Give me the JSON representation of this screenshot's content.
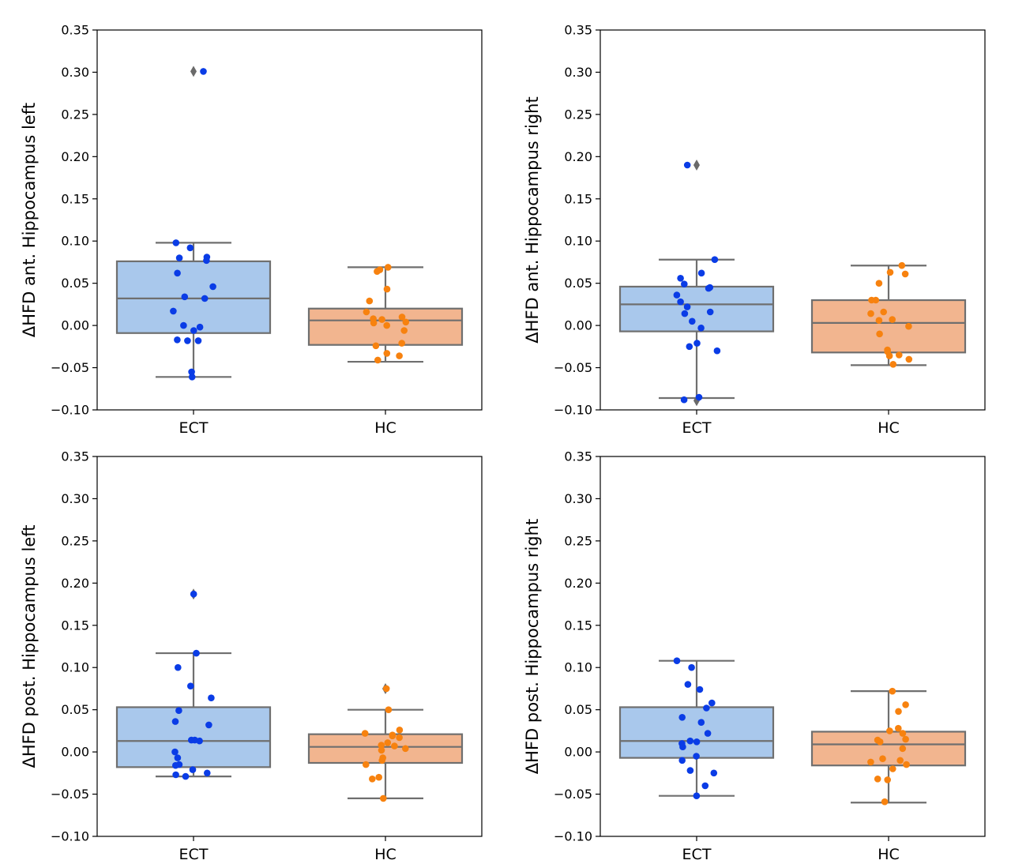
{
  "colors": {
    "ect_box": "#a9c8ec",
    "hc_box": "#f2b58f",
    "ect_point": "#0a3ce6",
    "hc_point": "#f7820f",
    "box_line": "#6f6f6f",
    "outlier_marker": "#6a6a6a",
    "axes": "#000000"
  },
  "chart_data": [
    {
      "type": "box",
      "ylabel": "ΔHFD ant. Hippocampus left",
      "categories": [
        "ECT",
        "HC"
      ],
      "ylim": [
        -0.1,
        0.35
      ],
      "yticks": [
        -0.1,
        -0.05,
        0.0,
        0.05,
        0.1,
        0.15,
        0.2,
        0.25,
        0.3,
        0.35
      ],
      "ytick_labels": [
        "−0.10",
        "−0.05",
        "0.00",
        "0.05",
        "0.10",
        "0.15",
        "0.20",
        "0.25",
        "0.30",
        "0.35"
      ],
      "boxes": [
        {
          "category": "ECT",
          "whisker_low": -0.061,
          "q1": -0.009,
          "median": 0.032,
          "q3": 0.076,
          "whisker_high": 0.098,
          "outliers": [
            0.301
          ]
        },
        {
          "category": "HC",
          "whisker_low": -0.043,
          "q1": -0.023,
          "median": 0.006,
          "q3": 0.02,
          "whisker_high": 0.069,
          "outliers": []
        }
      ],
      "points": [
        {
          "category": "ECT",
          "values": [
            0.301,
            0.098,
            0.092,
            0.081,
            0.08,
            0.077,
            0.062,
            0.046,
            0.034,
            0.032,
            0.017,
            0.0,
            -0.002,
            -0.006,
            -0.017,
            -0.018,
            -0.018,
            -0.055,
            -0.061
          ]
        },
        {
          "category": "HC",
          "values": [
            0.069,
            0.066,
            0.064,
            0.043,
            0.029,
            0.016,
            0.01,
            0.008,
            0.007,
            0.004,
            0.003,
            0.0,
            -0.006,
            -0.021,
            -0.024,
            -0.033,
            -0.036,
            -0.041
          ]
        }
      ]
    },
    {
      "type": "box",
      "ylabel": "ΔHFD ant. Hippocampus right",
      "categories": [
        "ECT",
        "HC"
      ],
      "ylim": [
        -0.1,
        0.35
      ],
      "yticks": [
        -0.1,
        -0.05,
        0.0,
        0.05,
        0.1,
        0.15,
        0.2,
        0.25,
        0.3,
        0.35
      ],
      "ytick_labels": [
        "−0.10",
        "−0.05",
        "0.00",
        "0.05",
        "0.10",
        "0.15",
        "0.20",
        "0.25",
        "0.30",
        "0.35"
      ],
      "boxes": [
        {
          "category": "ECT",
          "whisker_low": -0.086,
          "q1": -0.007,
          "median": 0.025,
          "q3": 0.046,
          "whisker_high": 0.078,
          "outliers": [
            0.19,
            -0.089
          ]
        },
        {
          "category": "HC",
          "whisker_low": -0.047,
          "q1": -0.032,
          "median": 0.003,
          "q3": 0.03,
          "whisker_high": 0.071,
          "outliers": []
        }
      ],
      "points": [
        {
          "category": "ECT",
          "values": [
            0.19,
            0.078,
            0.062,
            0.056,
            0.049,
            0.045,
            0.044,
            0.036,
            0.028,
            0.022,
            0.016,
            0.014,
            0.005,
            -0.003,
            -0.021,
            -0.025,
            -0.03,
            -0.085,
            -0.088
          ]
        },
        {
          "category": "HC",
          "values": [
            0.071,
            0.063,
            0.061,
            0.05,
            0.03,
            0.03,
            0.016,
            0.014,
            0.007,
            0.006,
            -0.001,
            -0.01,
            -0.029,
            -0.031,
            -0.035,
            -0.036,
            -0.04,
            -0.046
          ]
        }
      ]
    },
    {
      "type": "box",
      "ylabel": "ΔHFD post. Hippocampus left",
      "categories": [
        "ECT",
        "HC"
      ],
      "ylim": [
        -0.1,
        0.35
      ],
      "yticks": [
        -0.1,
        -0.05,
        0.0,
        0.05,
        0.1,
        0.15,
        0.2,
        0.25,
        0.3,
        0.35
      ],
      "ytick_labels": [
        "−0.10",
        "−0.05",
        "0.00",
        "0.05",
        "0.10",
        "0.15",
        "0.20",
        "0.25",
        "0.30",
        "0.35"
      ],
      "boxes": [
        {
          "category": "ECT",
          "whisker_low": -0.029,
          "q1": -0.018,
          "median": 0.013,
          "q3": 0.053,
          "whisker_high": 0.117,
          "outliers": [
            0.187
          ]
        },
        {
          "category": "HC",
          "whisker_low": -0.055,
          "q1": -0.013,
          "median": 0.006,
          "q3": 0.021,
          "whisker_high": 0.05,
          "outliers": [
            0.075
          ]
        }
      ],
      "points": [
        {
          "category": "ECT",
          "values": [
            0.187,
            0.117,
            0.1,
            0.078,
            0.064,
            0.049,
            0.036,
            0.032,
            0.014,
            0.014,
            0.013,
            0.0,
            -0.007,
            -0.015,
            -0.016,
            -0.021,
            -0.025,
            -0.027,
            -0.029
          ]
        },
        {
          "category": "HC",
          "values": [
            0.075,
            0.05,
            0.026,
            0.022,
            0.02,
            0.019,
            0.017,
            0.011,
            0.008,
            0.007,
            0.004,
            0.002,
            -0.007,
            -0.01,
            -0.015,
            -0.03,
            -0.032,
            -0.055
          ]
        }
      ]
    },
    {
      "type": "box",
      "ylabel": "ΔHFD post. Hippocampus right",
      "categories": [
        "ECT",
        "HC"
      ],
      "ylim": [
        -0.1,
        0.35
      ],
      "yticks": [
        -0.1,
        -0.05,
        0.0,
        0.05,
        0.1,
        0.15,
        0.2,
        0.25,
        0.3,
        0.35
      ],
      "ytick_labels": [
        "−0.10",
        "−0.05",
        "0.00",
        "0.05",
        "0.10",
        "0.15",
        "0.20",
        "0.25",
        "0.30",
        "0.35"
      ],
      "boxes": [
        {
          "category": "ECT",
          "whisker_low": -0.052,
          "q1": -0.007,
          "median": 0.013,
          "q3": 0.053,
          "whisker_high": 0.108,
          "outliers": []
        },
        {
          "category": "HC",
          "whisker_low": -0.06,
          "q1": -0.016,
          "median": 0.009,
          "q3": 0.024,
          "whisker_high": 0.072,
          "outliers": []
        }
      ],
      "points": [
        {
          "category": "ECT",
          "values": [
            0.108,
            0.1,
            0.08,
            0.074,
            0.058,
            0.052,
            0.041,
            0.035,
            0.022,
            0.013,
            0.012,
            0.01,
            0.006,
            -0.005,
            -0.01,
            -0.022,
            -0.025,
            -0.04,
            -0.052
          ]
        },
        {
          "category": "HC",
          "values": [
            0.072,
            0.056,
            0.048,
            0.028,
            0.025,
            0.022,
            0.015,
            0.014,
            0.012,
            0.004,
            -0.008,
            -0.01,
            -0.012,
            -0.015,
            -0.02,
            -0.032,
            -0.033,
            -0.059
          ]
        }
      ]
    }
  ]
}
